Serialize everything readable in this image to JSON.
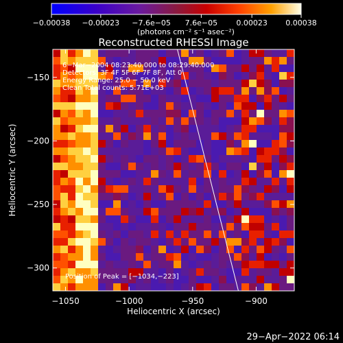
{
  "chart_data": {
    "type": "heatmap",
    "title": "Reconstructed RHESSI Image",
    "xlabel": "Heliocentric X (arcsec)",
    "ylabel": "Heliocentric Y (arcsec)",
    "xlim": [
      -1060,
      -870
    ],
    "ylim": [
      -318,
      -128
    ],
    "x_ticks": [
      "−1050",
      "−1000",
      "−950",
      "−900"
    ],
    "x_tick_values": [
      -1050,
      -1000,
      -950,
      -900
    ],
    "y_ticks": [
      "−150",
      "−200",
      "−250",
      "−300"
    ],
    "y_tick_values": [
      -150,
      -200,
      -250,
      -300
    ],
    "colorbar": {
      "tick_labels": [
        "−0.00038",
        "−0.00023",
        "−7.6e−05",
        "7.6e−05",
        "0.00023",
        "0.00038"
      ],
      "tick_values": [
        -0.00038,
        -0.00023,
        -7.6e-05,
        7.6e-05,
        0.00023,
        0.00038
      ],
      "range": [
        -0.00038,
        0.00038
      ],
      "units": "(photons cm⁻² s⁻¹ asec⁻²)"
    },
    "annotations": [
      "6−Mar−2004 08:23:40.000 to 08:29:40.000",
      "Detectors: 3F 4F 5F 6F 7F 8F, Att 0",
      "Energy Range: 25.0 − 50.0 keV",
      "Clean     Total counts: 5.71E+03"
    ],
    "peak_label": "Position of Peak = [−1034,−223]",
    "peak_position": [
      -1034,
      -223
    ],
    "limb_line": [
      [
        -962,
        -128
      ],
      [
        -914,
        -318
      ]
    ],
    "grid": false,
    "colormap": "blue-purple-red-yellow-white"
  },
  "footer": {
    "timestamp": "29−Apr−2022 06:14"
  },
  "colors": {
    "background": "#000000",
    "text": "#ffffff",
    "limb_line": "#ffffff"
  }
}
